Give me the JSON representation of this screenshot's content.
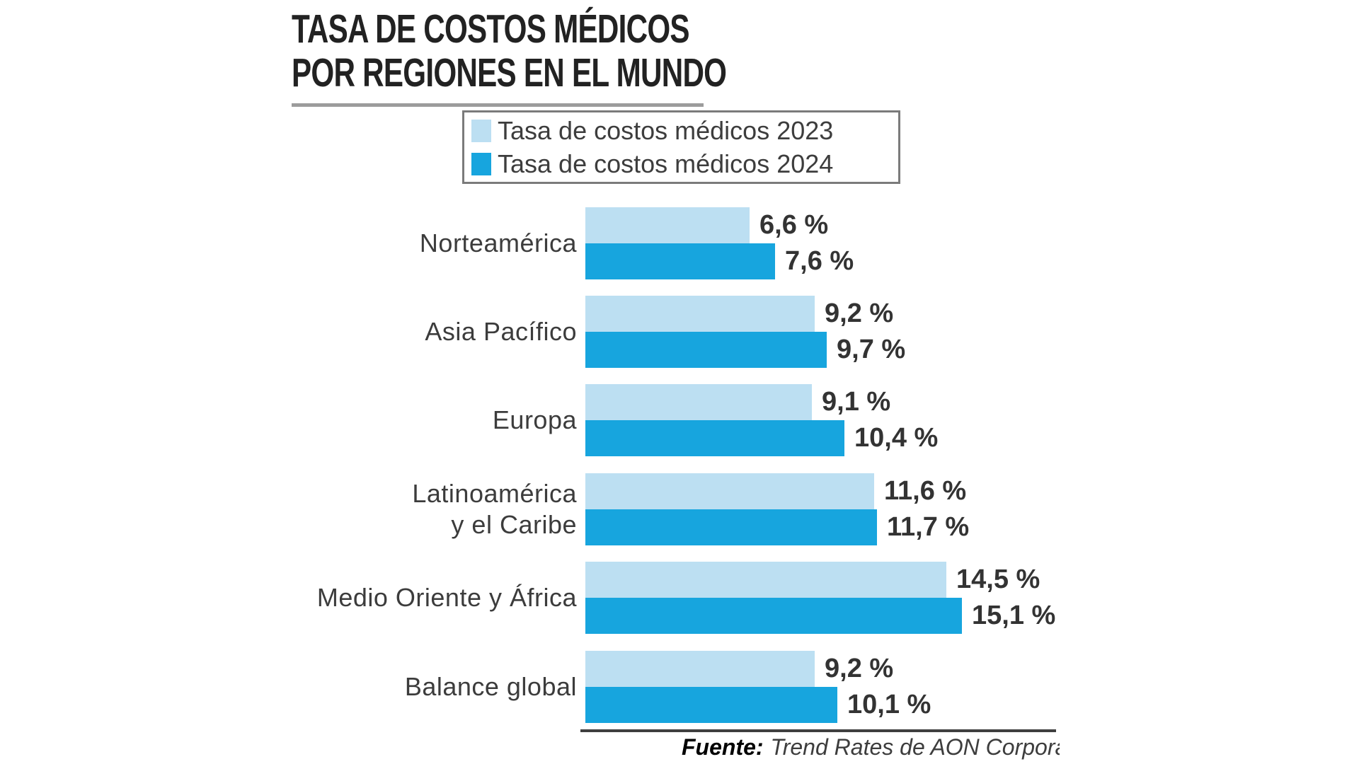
{
  "title": {
    "line1": "TASA DE COSTOS MÉDICOS",
    "line2": "POR REGIONES EN EL MUNDO"
  },
  "legend": {
    "items": [
      {
        "label": "Tasa de costos médicos 2023",
        "color": "#bcdff2"
      },
      {
        "label": "Tasa de costos médicos 2024",
        "color": "#17a5de"
      }
    ]
  },
  "source": {
    "prefix": "Fuente:",
    "text": "Trend Rates de AON Corporation"
  },
  "chart_data": {
    "type": "bar",
    "orientation": "horizontal",
    "title": "Tasa de costos médicos por regiones en el mundo",
    "categories": [
      "Norteamérica",
      "Asia Pacífico",
      "Europa",
      "Latinoamérica y el Caribe",
      "Medio Oriente y África",
      "Balance global"
    ],
    "category_lines": [
      [
        "Norteamérica"
      ],
      [
        "Asia Pacífico"
      ],
      [
        "Europa"
      ],
      [
        "Latinoamérica",
        "y el Caribe"
      ],
      [
        "Medio Oriente y África"
      ],
      [
        "Balance global"
      ]
    ],
    "series": [
      {
        "name": "Tasa de costos médicos 2023",
        "color": "#bcdff2",
        "values": [
          6.6,
          9.2,
          9.1,
          11.6,
          14.5,
          9.2
        ]
      },
      {
        "name": "Tasa de costos médicos 2024",
        "color": "#17a5de",
        "values": [
          7.6,
          9.7,
          10.4,
          11.7,
          15.1,
          10.1
        ]
      }
    ],
    "value_labels": [
      [
        "6,6 %",
        "7,6 %"
      ],
      [
        "9,2 %",
        "9,7 %"
      ],
      [
        "9,1 %",
        "10,4 %"
      ],
      [
        "11,6 %",
        "11,7 %"
      ],
      [
        "14,5 %",
        "15,1 %"
      ],
      [
        "9,2 %",
        "10,1 %"
      ]
    ],
    "value_suffix": "%",
    "decimal_separator": ",",
    "xlim": [
      0,
      16.5
    ],
    "grid": false,
    "axis_labels": "none",
    "legend_position": "top"
  }
}
